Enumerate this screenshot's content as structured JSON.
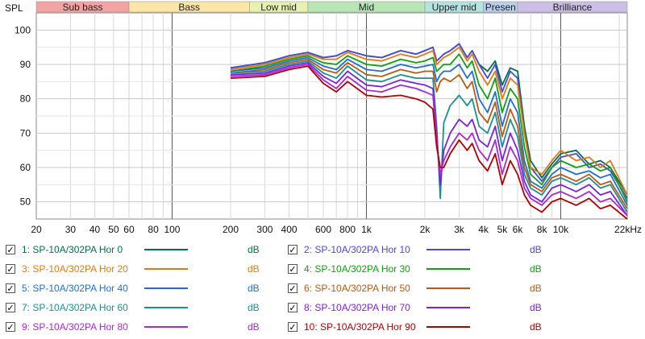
{
  "y_axis_label": "SPL",
  "bands": [
    {
      "name": "Sub bass",
      "from": 20,
      "to": 60,
      "color": "#f4a3a3"
    },
    {
      "name": "Bass",
      "from": 60,
      "to": 250,
      "color": "#fbe6a6"
    },
    {
      "name": "Low mid",
      "from": 250,
      "to": 500,
      "color": "#e8f2b0"
    },
    {
      "name": "Mid",
      "from": 500,
      "to": 2000,
      "color": "#b8e6b5"
    },
    {
      "name": "Upper mid",
      "from": 2000,
      "to": 4000,
      "color": "#b5e4e0"
    },
    {
      "name": "Presen",
      "from": 4000,
      "to": 6000,
      "color": "#b9cfee"
    },
    {
      "name": "Brilliance",
      "from": 6000,
      "to": 22000,
      "color": "#cbbfe6"
    }
  ],
  "chart_data": {
    "type": "line",
    "xscale": "log",
    "xlim": [
      20,
      22000
    ],
    "ylim": [
      45,
      105
    ],
    "x_tick_labels": [
      "20",
      "30",
      "40",
      "50",
      "60",
      "80",
      "100",
      "200",
      "300",
      "400",
      "600",
      "800",
      "1k",
      "2k",
      "3k",
      "4k",
      "5k",
      "6k",
      "8k",
      "10k",
      "22kHz"
    ],
    "x_tick_values": [
      20,
      30,
      40,
      50,
      60,
      80,
      100,
      200,
      300,
      400,
      600,
      800,
      1000,
      2000,
      3000,
      4000,
      5000,
      6000,
      8000,
      10000,
      22000
    ],
    "y_ticks": [
      50,
      60,
      70,
      80,
      90,
      100
    ],
    "grid": true,
    "series": [
      {
        "name": "1: SP-10A/302PA Hor 0",
        "unit": "dB",
        "color": "#00704a",
        "x": [
          200,
          300,
          400,
          500,
          600,
          700,
          800,
          1000,
          1200,
          1500,
          1800,
          2000,
          2200,
          2300,
          2400,
          2500,
          2700,
          3000,
          3300,
          3500,
          3800,
          4200,
          4600,
          5000,
          5500,
          6000,
          6500,
          7000,
          8000,
          9000,
          10000,
          12000,
          14000,
          16000,
          18000,
          22000
        ],
        "y": [
          89,
          90.5,
          92.5,
          93.5,
          92,
          92.5,
          94,
          92.5,
          92,
          94,
          93,
          94,
          95,
          91,
          92,
          93,
          94,
          96,
          92,
          94,
          90,
          88,
          91,
          84,
          89,
          88,
          72,
          62,
          57,
          61,
          64,
          65,
          61,
          62,
          60,
          52
        ]
      },
      {
        "name": "2: SP-10A/302PA Hor 10",
        "unit": "dB",
        "color": "#4a4ad6",
        "x": [
          200,
          300,
          400,
          500,
          600,
          700,
          800,
          1000,
          1200,
          1500,
          1800,
          2000,
          2200,
          2300,
          2400,
          2500,
          2700,
          3000,
          3300,
          3500,
          3800,
          4200,
          4600,
          5000,
          5500,
          6000,
          6500,
          7000,
          8000,
          9000,
          10000,
          12000,
          14000,
          16000,
          18000,
          22000
        ],
        "y": [
          89,
          90.5,
          92.5,
          93.5,
          92,
          92.5,
          94,
          92.5,
          92,
          94,
          93,
          94,
          95,
          91,
          92,
          93,
          94,
          96,
          92,
          94,
          90,
          86,
          90,
          82,
          88,
          86,
          70,
          60,
          56,
          60,
          63,
          64,
          60,
          61,
          59,
          51
        ]
      },
      {
        "name": "3: SP-10A/302PA Hor 20",
        "unit": "dB",
        "color": "#e07a10",
        "x": [
          200,
          300,
          400,
          500,
          600,
          700,
          800,
          1000,
          1200,
          1500,
          1800,
          2000,
          2200,
          2300,
          2400,
          2500,
          2700,
          3000,
          3300,
          3500,
          3800,
          4200,
          4600,
          5000,
          5500,
          6000,
          6500,
          7000,
          8000,
          9000,
          10000,
          12000,
          14000,
          16000,
          18000,
          22000
        ],
        "y": [
          88.5,
          90,
          92,
          93,
          91.5,
          91.5,
          93.5,
          91.5,
          91,
          93,
          92,
          93,
          94,
          90,
          91,
          92,
          93,
          95,
          91,
          93,
          88,
          84,
          88,
          80,
          86,
          84,
          70,
          60,
          58,
          62,
          65,
          62,
          63,
          60,
          62,
          52
        ]
      },
      {
        "name": "4: SP-10A/302PA Hor 30",
        "unit": "dB",
        "color": "#12a012",
        "x": [
          200,
          300,
          400,
          500,
          600,
          700,
          800,
          1000,
          1200,
          1500,
          1800,
          2000,
          2200,
          2300,
          2400,
          2500,
          2700,
          3000,
          3300,
          3500,
          3800,
          4200,
          4600,
          5000,
          5500,
          6000,
          6500,
          7000,
          8000,
          9000,
          10000,
          12000,
          14000,
          16000,
          18000,
          22000
        ],
        "y": [
          88,
          89.5,
          91.5,
          92.5,
          90.5,
          90,
          92.5,
          90,
          89.5,
          91.5,
          90.5,
          91,
          92,
          88,
          89,
          90,
          90,
          93,
          89,
          91,
          84,
          80,
          86,
          76,
          83,
          80,
          66,
          58,
          55,
          60,
          62,
          60,
          61,
          59,
          60,
          50
        ]
      },
      {
        "name": "5: SP-10A/302PA Hor 40",
        "unit": "dB",
        "color": "#1f6fd0",
        "x": [
          200,
          300,
          400,
          500,
          600,
          700,
          800,
          1000,
          1200,
          1500,
          1800,
          2000,
          2200,
          2300,
          2400,
          2500,
          2700,
          3000,
          3300,
          3500,
          3800,
          4200,
          4600,
          5000,
          5500,
          6000,
          6500,
          7000,
          8000,
          9000,
          10000,
          12000,
          14000,
          16000,
          18000,
          22000
        ],
        "y": [
          88,
          89,
          91,
          92,
          89.5,
          88.5,
          91.5,
          88.5,
          88,
          90,
          89,
          89.5,
          90,
          85,
          87,
          88,
          88,
          90,
          86,
          88,
          80,
          76,
          82,
          72,
          80,
          76,
          62,
          56,
          54,
          58,
          60,
          58,
          59,
          57,
          58,
          49
        ]
      },
      {
        "name": "6: SP-10A/302PA Hor 50",
        "unit": "dB",
        "color": "#b85a12",
        "x": [
          200,
          300,
          400,
          500,
          600,
          700,
          800,
          1000,
          1200,
          1500,
          1800,
          2000,
          2200,
          2300,
          2400,
          2500,
          2700,
          3000,
          3300,
          3500,
          3800,
          4200,
          4600,
          5000,
          5500,
          6000,
          6500,
          7000,
          8000,
          9000,
          10000,
          12000,
          14000,
          16000,
          18000,
          22000
        ],
        "y": [
          87.5,
          88.5,
          90.5,
          91.5,
          88.5,
          87.5,
          90.5,
          87,
          86.5,
          88.5,
          87.5,
          88,
          88,
          82,
          85,
          86,
          85,
          87,
          83,
          85,
          76,
          73,
          79,
          69,
          77,
          72,
          60,
          55,
          53,
          57,
          58,
          56,
          58,
          55,
          56,
          48
        ]
      },
      {
        "name": "7: SP-10A/302PA Hor 60",
        "unit": "dB",
        "color": "#1a9090",
        "x": [
          200,
          300,
          400,
          500,
          600,
          700,
          800,
          1000,
          1200,
          1500,
          1800,
          2000,
          2200,
          2300,
          2400,
          2500,
          2700,
          3000,
          3300,
          3500,
          3800,
          4200,
          4600,
          5000,
          5500,
          6000,
          6500,
          7000,
          8000,
          9000,
          10000,
          12000,
          14000,
          16000,
          18000,
          22000
        ],
        "y": [
          87.5,
          88,
          90,
          91,
          87.5,
          86,
          89.5,
          85.5,
          85,
          87,
          86,
          86,
          86,
          72,
          51,
          73,
          78,
          81,
          78,
          80,
          72,
          70,
          76,
          66,
          74,
          69,
          58,
          54,
          52,
          56,
          57,
          55,
          57,
          54,
          55,
          47
        ]
      },
      {
        "name": "8: SP-10A/302PA Hor 70",
        "unit": "dB",
        "color": "#7a22e0",
        "x": [
          200,
          300,
          400,
          500,
          600,
          700,
          800,
          1000,
          1200,
          1500,
          1800,
          2000,
          2200,
          2300,
          2400,
          2500,
          2700,
          3000,
          3300,
          3500,
          3800,
          4200,
          4600,
          5000,
          5500,
          6000,
          6500,
          7000,
          8000,
          9000,
          10000,
          12000,
          14000,
          16000,
          18000,
          22000
        ],
        "y": [
          87,
          87.5,
          89.5,
          90.5,
          86.5,
          84.5,
          88,
          84,
          83.5,
          85.5,
          84.5,
          84,
          83,
          70,
          55,
          65,
          70,
          74,
          72,
          74,
          68,
          66,
          72,
          62,
          70,
          65,
          56,
          52,
          50,
          54,
          55,
          53,
          55,
          52,
          53,
          46
        ]
      },
      {
        "name": "9: SP-10A/302PA Hor 80",
        "unit": "dB",
        "color": "#a82ad0",
        "x": [
          200,
          300,
          400,
          500,
          600,
          700,
          800,
          1000,
          1200,
          1500,
          1800,
          2000,
          2200,
          2300,
          2400,
          2500,
          2700,
          3000,
          3300,
          3500,
          3800,
          4200,
          4600,
          5000,
          5500,
          6000,
          6500,
          7000,
          8000,
          9000,
          10000,
          12000,
          14000,
          16000,
          18000,
          22000
        ],
        "y": [
          86.5,
          87,
          89,
          90,
          85.5,
          83,
          86.5,
          82.5,
          82,
          84,
          83,
          82,
          81,
          68,
          58,
          62,
          66,
          70,
          68,
          70,
          65,
          62,
          68,
          58,
          66,
          62,
          54,
          51,
          49,
          52,
          53,
          51,
          53,
          50,
          51,
          46
        ]
      },
      {
        "name": "10: SP-10A/302PA Hor 90",
        "unit": "dB",
        "color": "#b00000",
        "x": [
          200,
          300,
          400,
          500,
          600,
          700,
          800,
          1000,
          1200,
          1500,
          1800,
          2000,
          2200,
          2300,
          2400,
          2500,
          2700,
          3000,
          3300,
          3500,
          3800,
          4200,
          4600,
          5000,
          5500,
          6000,
          6500,
          7000,
          8000,
          9000,
          10000,
          12000,
          14000,
          16000,
          18000,
          22000
        ],
        "y": [
          86,
          86.5,
          88.5,
          89.5,
          84.5,
          82,
          85,
          81,
          80.5,
          81,
          80,
          79,
          77,
          66,
          60,
          60,
          64,
          68,
          65,
          67,
          62,
          59,
          64,
          55,
          62,
          58,
          52,
          49,
          47,
          50,
          51,
          49,
          51,
          48,
          49,
          45
        ]
      }
    ]
  }
}
